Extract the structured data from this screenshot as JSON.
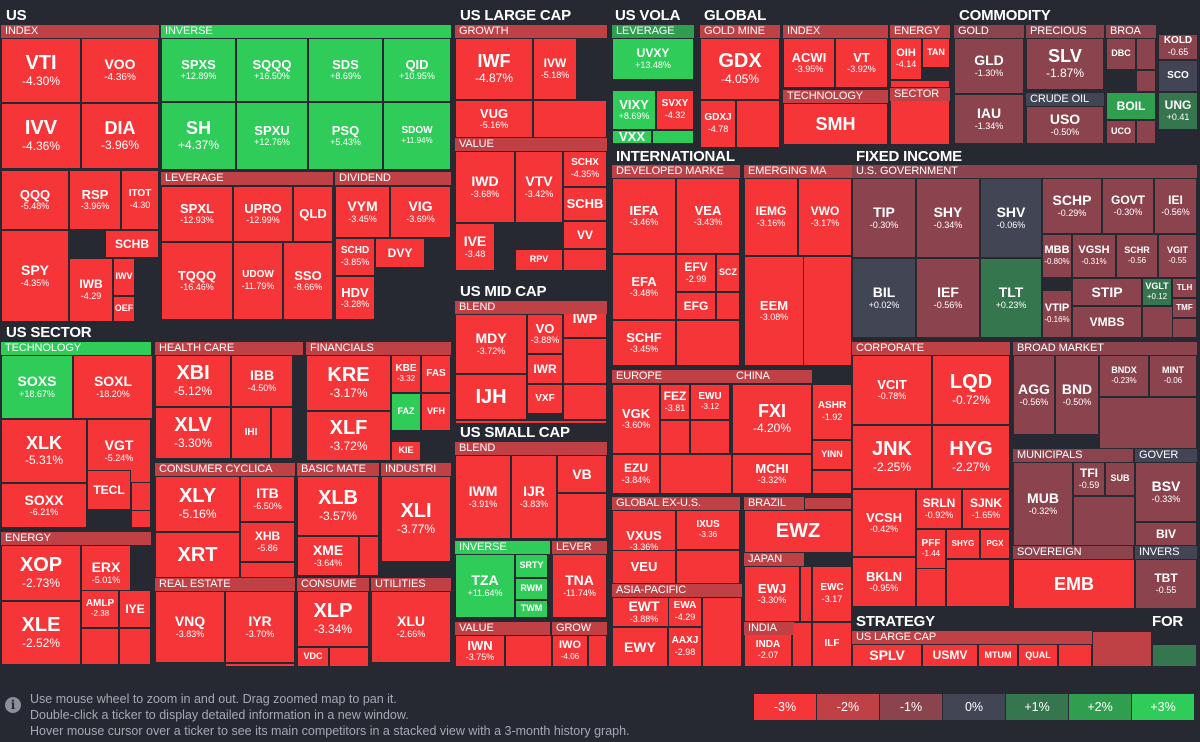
{
  "colors": {
    "bg": "#262931",
    "red3": "#f63538",
    "red2": "#bf4045",
    "red1": "#8b444e",
    "zero": "#414554",
    "green1": "#35764e",
    "green2": "#2f9e4f",
    "green3": "#30cc5a",
    "tile_red": "#dd3a36"
  },
  "sections": [
    {
      "name": "US"
    },
    {
      "name": "US LARGE CAP"
    },
    {
      "name": "US VOLA"
    },
    {
      "name": "GLOBAL"
    },
    {
      "name": "COMMODITY"
    },
    {
      "name": "INTERNATIONAL"
    },
    {
      "name": "FIXED INCOME"
    },
    {
      "name": "US SECTOR"
    },
    {
      "name": "US MID CAP"
    },
    {
      "name": "US SMALL CAP"
    },
    {
      "name": "STRATEGY"
    },
    {
      "name": "FOR"
    }
  ],
  "industries": [
    "INDEX",
    "INVERSE",
    "LEVERAGE",
    "DIVIDEND",
    "GROWTH",
    "VALUE",
    "LEVERAGE",
    "GOLD MINE",
    "INDEX",
    "ENERGY",
    "TECHNOLOGY",
    "SECTOR",
    "GOLD",
    "PRECIOUS",
    "BROA",
    "CRUDE OIL",
    "DEVELOPED MARKE",
    "EMERGING MA",
    "EUROPE",
    "CHINA",
    "GLOBAL EX-U.S.",
    "BRAZIL",
    "JAPAN",
    "ASIA-PACIFIC",
    "INDIA",
    "U.S. GOVERNMENT",
    "CORPORATE",
    "BROAD MARKET",
    "MUNICIPALS",
    "GOVER",
    "SOVEREIGN",
    "INVERS",
    "US LARGE CAP",
    "TECHNOLOGY",
    "HEALTH CARE",
    "FINANCIALS",
    "CONSUMER CYCLICA",
    "BASIC MATE",
    "INDUSTRI",
    "REAL ESTATE",
    "CONSUME",
    "UTILITIES",
    "ENERGY",
    "BLEND",
    "BLEND",
    "INVERSE",
    "LEVER",
    "VALUE",
    "GROW"
  ],
  "tiles": [
    {
      "ticker": "VTI",
      "change": "-4.30%"
    },
    {
      "ticker": "VOO",
      "change": "-4.36%"
    },
    {
      "ticker": "IVV",
      "change": "-4.36%"
    },
    {
      "ticker": "DIA",
      "change": "-3.96%"
    },
    {
      "ticker": "QQQ",
      "change": "-5.48%"
    },
    {
      "ticker": "RSP",
      "change": "-3.96%"
    },
    {
      "ticker": "ITOT",
      "change": "-4.30"
    },
    {
      "ticker": "SCHB",
      "change": ""
    },
    {
      "ticker": "SPY",
      "change": "-4.35%"
    },
    {
      "ticker": "IWB",
      "change": "-4.29"
    },
    {
      "ticker": "IWV",
      "change": ""
    },
    {
      "ticker": "OEF",
      "change": ""
    },
    {
      "ticker": "SPXS",
      "change": "+12.89%"
    },
    {
      "ticker": "SQQQ",
      "change": "+16.50%"
    },
    {
      "ticker": "SDS",
      "change": "+8.69%"
    },
    {
      "ticker": "QID",
      "change": "+10.95%"
    },
    {
      "ticker": "SH",
      "change": "+4.37%"
    },
    {
      "ticker": "SPXU",
      "change": "+12.76%"
    },
    {
      "ticker": "PSQ",
      "change": "+5.43%"
    },
    {
      "ticker": "SDOW",
      "change": "+11.94%"
    },
    {
      "ticker": "SPXL",
      "change": "-12.93%"
    },
    {
      "ticker": "UPRO",
      "change": "-12.99%"
    },
    {
      "ticker": "QLD",
      "change": ""
    },
    {
      "ticker": "TQQQ",
      "change": "-16.46%"
    },
    {
      "ticker": "UDOW",
      "change": "-11.79%"
    },
    {
      "ticker": "SSO",
      "change": "-8.66%"
    },
    {
      "ticker": "VYM",
      "change": "-3.45%"
    },
    {
      "ticker": "VIG",
      "change": "-3.69%"
    },
    {
      "ticker": "SCHD",
      "change": "-3.85%"
    },
    {
      "ticker": "DVY",
      "change": ""
    },
    {
      "ticker": "HDV",
      "change": "-3.28%"
    },
    {
      "ticker": "IWF",
      "change": "-4.87%"
    },
    {
      "ticker": "IVW",
      "change": "-5.18%"
    },
    {
      "ticker": "VUG",
      "change": "-5.16%"
    },
    {
      "ticker": "IWD",
      "change": "-3.68%"
    },
    {
      "ticker": "VTV",
      "change": "-3.42%"
    },
    {
      "ticker": "SCHX",
      "change": "-4.35%"
    },
    {
      "ticker": "SCHB",
      "change": ""
    },
    {
      "ticker": "VV",
      "change": ""
    },
    {
      "ticker": "IVE",
      "change": "-3.48"
    },
    {
      "ticker": "RPV",
      "change": ""
    },
    {
      "ticker": "UVXY",
      "change": "+13.48%"
    },
    {
      "ticker": "VIXY",
      "change": "+8.69%"
    },
    {
      "ticker": "SVXY",
      "change": "-4.32"
    },
    {
      "ticker": "VXX",
      "change": ""
    },
    {
      "ticker": "GDX",
      "change": "-4.05%"
    },
    {
      "ticker": "GDXJ",
      "change": "-4.78"
    },
    {
      "ticker": "ACWI",
      "change": "-3.95%"
    },
    {
      "ticker": "VT",
      "change": "-3.92%"
    },
    {
      "ticker": "OIH",
      "change": "-4.14"
    },
    {
      "ticker": "TAN",
      "change": ""
    },
    {
      "ticker": "SMH",
      "change": ""
    },
    {
      "ticker": "GLD",
      "change": "-1.30%"
    },
    {
      "ticker": "IAU",
      "change": "-1.34%"
    },
    {
      "ticker": "SLV",
      "change": "-1.87%"
    },
    {
      "ticker": "DBC",
      "change": ""
    },
    {
      "ticker": "KOLD",
      "change": "-0.65"
    },
    {
      "ticker": "SCO",
      "change": ""
    },
    {
      "ticker": "USO",
      "change": "-0.50%"
    },
    {
      "ticker": "BOIL",
      "change": ""
    },
    {
      "ticker": "UNG",
      "change": "+0.41"
    },
    {
      "ticker": "UCO",
      "change": ""
    },
    {
      "ticker": "IEFA",
      "change": "-3.46%"
    },
    {
      "ticker": "VEA",
      "change": "-3.43%"
    },
    {
      "ticker": "EFA",
      "change": "-3.48%"
    },
    {
      "ticker": "EFV",
      "change": "-2.99"
    },
    {
      "ticker": "SCZ",
      "change": ""
    },
    {
      "ticker": "EFG",
      "change": ""
    },
    {
      "ticker": "SCHF",
      "change": "-3.45%"
    },
    {
      "ticker": "IEMG",
      "change": "-3.16%"
    },
    {
      "ticker": "VWO",
      "change": "-3.17%"
    },
    {
      "ticker": "EEM",
      "change": "-3.08%"
    },
    {
      "ticker": "VGK",
      "change": "-3.60%"
    },
    {
      "ticker": "FEZ",
      "change": "-3.81"
    },
    {
      "ticker": "EWU",
      "change": "-3.12"
    },
    {
      "ticker": "EZU",
      "change": "-3.84%"
    },
    {
      "ticker": "FXI",
      "change": "-4.20%"
    },
    {
      "ticker": "ASHR",
      "change": "-1.92"
    },
    {
      "ticker": "MCHI",
      "change": "-3.32%"
    },
    {
      "ticker": "YINN",
      "change": ""
    },
    {
      "ticker": "VXUS",
      "change": "-3.36%"
    },
    {
      "ticker": "IXUS",
      "change": "-3.36"
    },
    {
      "ticker": "VEU",
      "change": ""
    },
    {
      "ticker": "EWZ",
      "change": ""
    },
    {
      "ticker": "EWJ",
      "change": "-3.30%"
    },
    {
      "ticker": "EWC",
      "change": "-3.17"
    },
    {
      "ticker": "EWT",
      "change": "-3.88%"
    },
    {
      "ticker": "EWA",
      "change": "-4.29"
    },
    {
      "ticker": "AAXJ",
      "change": "-2.98"
    },
    {
      "ticker": "EWY",
      "change": ""
    },
    {
      "ticker": "INDA",
      "change": "-2.07"
    },
    {
      "ticker": "ILF",
      "change": ""
    },
    {
      "ticker": "TIP",
      "change": "-0.30%"
    },
    {
      "ticker": "SHY",
      "change": "-0.34%"
    },
    {
      "ticker": "SHV",
      "change": "-0.06%"
    },
    {
      "ticker": "SCHP",
      "change": "-0.29%"
    },
    {
      "ticker": "GOVT",
      "change": "-0.30%"
    },
    {
      "ticker": "IEI",
      "change": "-0.56%"
    },
    {
      "ticker": "MBB",
      "change": "-0.80%"
    },
    {
      "ticker": "VGSH",
      "change": "-0.31%"
    },
    {
      "ticker": "SCHR",
      "change": "-0.56"
    },
    {
      "ticker": "VGIT",
      "change": "-0.55"
    },
    {
      "ticker": "BIL",
      "change": "+0.02%"
    },
    {
      "ticker": "IEF",
      "change": "-0.56%"
    },
    {
      "ticker": "TLT",
      "change": "+0.23%"
    },
    {
      "ticker": "STIP",
      "change": ""
    },
    {
      "ticker": "VGLT",
      "change": "+0.12"
    },
    {
      "ticker": "TLH",
      "change": ""
    },
    {
      "ticker": "VTIP",
      "change": "-0.16%"
    },
    {
      "ticker": "VMBS",
      "change": ""
    },
    {
      "ticker": "TMF",
      "change": ""
    },
    {
      "ticker": "VCIT",
      "change": "-0.78%"
    },
    {
      "ticker": "LQD",
      "change": "-0.72%"
    },
    {
      "ticker": "JNK",
      "change": "-2.25%"
    },
    {
      "ticker": "HYG",
      "change": "-2.27%"
    },
    {
      "ticker": "VCSH",
      "change": "-0.42%"
    },
    {
      "ticker": "SRLN",
      "change": "-0.92%"
    },
    {
      "ticker": "SJNK",
      "change": "-1.65%"
    },
    {
      "ticker": "PFF",
      "change": "-1.44"
    },
    {
      "ticker": "SHYG",
      "change": ""
    },
    {
      "ticker": "PGX",
      "change": ""
    },
    {
      "ticker": "BKLN",
      "change": "-0.95%"
    },
    {
      "ticker": "AGG",
      "change": "-0.56%"
    },
    {
      "ticker": "BND",
      "change": "-0.50%"
    },
    {
      "ticker": "BNDX",
      "change": "-0.23%"
    },
    {
      "ticker": "MINT",
      "change": "-0.06"
    },
    {
      "ticker": "MUB",
      "change": "-0.32%"
    },
    {
      "ticker": "TFI",
      "change": "-0.59"
    },
    {
      "ticker": "SUB",
      "change": ""
    },
    {
      "ticker": "BSV",
      "change": "-0.33%"
    },
    {
      "ticker": "BIV",
      "change": ""
    },
    {
      "ticker": "EMB",
      "change": ""
    },
    {
      "ticker": "TBT",
      "change": "-0.55"
    },
    {
      "ticker": "SPLV",
      "change": ""
    },
    {
      "ticker": "USMV",
      "change": ""
    },
    {
      "ticker": "MTUM",
      "change": ""
    },
    {
      "ticker": "QUAL",
      "change": ""
    },
    {
      "ticker": "SOXS",
      "change": "+18.67%"
    },
    {
      "ticker": "SOXL",
      "change": "-18.20%"
    },
    {
      "ticker": "XLK",
      "change": "-5.31%"
    },
    {
      "ticker": "VGT",
      "change": "-5.24%"
    },
    {
      "ticker": "SOXX",
      "change": "-6.21%"
    },
    {
      "ticker": "TECL",
      "change": ""
    },
    {
      "ticker": "XBI",
      "change": "-5.12%"
    },
    {
      "ticker": "IBB",
      "change": "-4.50%"
    },
    {
      "ticker": "XLV",
      "change": "-3.30%"
    },
    {
      "ticker": "IHI",
      "change": ""
    },
    {
      "ticker": "KRE",
      "change": "-3.17%"
    },
    {
      "ticker": "KBE",
      "change": "-3.32"
    },
    {
      "ticker": "FAS",
      "change": ""
    },
    {
      "ticker": "XLF",
      "change": "-3.72%"
    },
    {
      "ticker": "FAZ",
      "change": ""
    },
    {
      "ticker": "VFH",
      "change": ""
    },
    {
      "ticker": "KIE",
      "change": ""
    },
    {
      "ticker": "XLY",
      "change": "-5.16%"
    },
    {
      "ticker": "ITB",
      "change": "-6.50%"
    },
    {
      "ticker": "XHB",
      "change": "-5.86"
    },
    {
      "ticker": "XRT",
      "change": ""
    },
    {
      "ticker": "XLB",
      "change": "-3.57%"
    },
    {
      "ticker": "XME",
      "change": "-3.64%"
    },
    {
      "ticker": "XLI",
      "change": "-3.77%"
    },
    {
      "ticker": "VNQ",
      "change": "-3.83%"
    },
    {
      "ticker": "IYR",
      "change": "-3.70%"
    },
    {
      "ticker": "XLP",
      "change": "-3.34%"
    },
    {
      "ticker": "VDC",
      "change": ""
    },
    {
      "ticker": "XLU",
      "change": "-2.66%"
    },
    {
      "ticker": "XOP",
      "change": "-2.73%"
    },
    {
      "ticker": "ERX",
      "change": "-5.01%"
    },
    {
      "ticker": "AMLP",
      "change": "-2.38"
    },
    {
      "ticker": "IYE",
      "change": ""
    },
    {
      "ticker": "XLE",
      "change": "-2.52%"
    },
    {
      "ticker": "MDY",
      "change": "-3.72%"
    },
    {
      "ticker": "VO",
      "change": "-3.88%"
    },
    {
      "ticker": "IWP",
      "change": ""
    },
    {
      "ticker": "IWR",
      "change": ""
    },
    {
      "ticker": "IJH",
      "change": ""
    },
    {
      "ticker": "VXF",
      "change": ""
    },
    {
      "ticker": "IWM",
      "change": "-3.91%"
    },
    {
      "ticker": "IJR",
      "change": "-3.83%"
    },
    {
      "ticker": "VB",
      "change": ""
    },
    {
      "ticker": "TZA",
      "change": "+11.64%"
    },
    {
      "ticker": "SRTY",
      "change": ""
    },
    {
      "ticker": "RWM",
      "change": ""
    },
    {
      "ticker": "TWM",
      "change": ""
    },
    {
      "ticker": "TNA",
      "change": "-11.74%"
    },
    {
      "ticker": "IWN",
      "change": "-3.75%"
    },
    {
      "ticker": "IWO",
      "change": "-4.06"
    }
  ],
  "help": {
    "line1": "Use mouse wheel to zoom in and out. Drag zoomed map to pan it.",
    "line2": "Double-click a ticker to display detailed information in a new window.",
    "line3": "Hover mouse cursor over a ticker to see its main competitors in a stacked view with a 3-month history graph."
  },
  "legend": [
    "-3%",
    "-2%",
    "-1%",
    "0%",
    "+1%",
    "+2%",
    "+3%"
  ],
  "legend_colors": [
    "#f63538",
    "#bf4045",
    "#8b444e",
    "#414554",
    "#35764e",
    "#2f9e4f",
    "#30cc5a"
  ]
}
